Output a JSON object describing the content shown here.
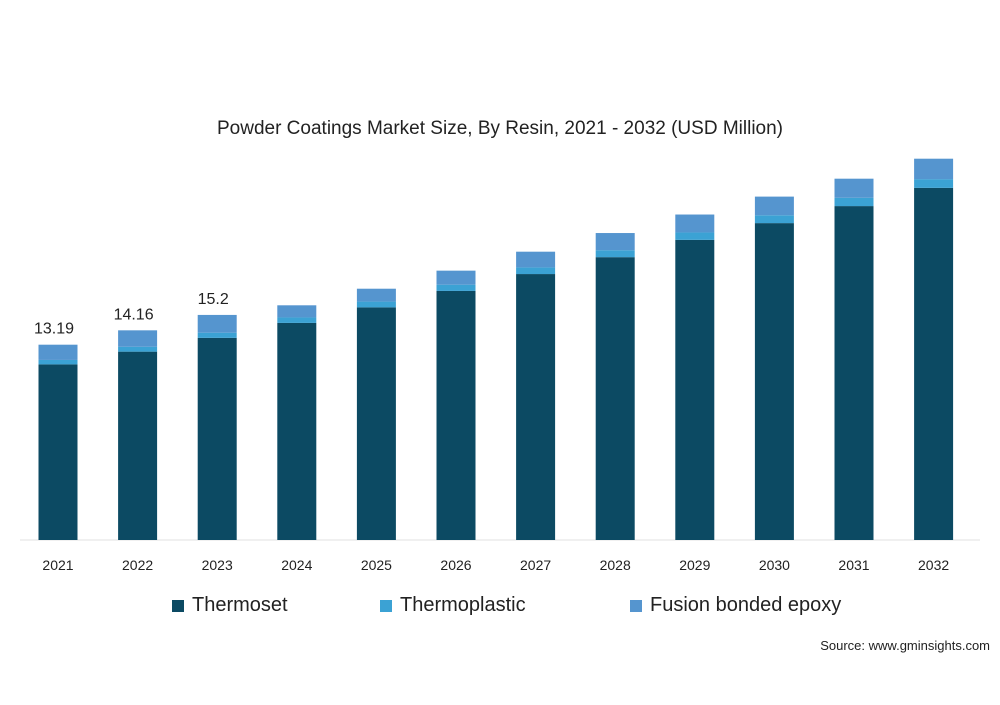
{
  "title": "Powder Coatings Market Size, By Resin, 2021 - 2032 (USD Million)",
  "source": "Source: www.gminsights.com",
  "colors": {
    "thermoset": "#0c4a63",
    "thermoplastic": "#3ba2d4",
    "fusion_bonded_epoxy": "#5595cf"
  },
  "chart_data": {
    "type": "bar",
    "stacked": true,
    "title": "Powder Coatings Market Size, By Resin, 2021 - 2032 (USD Million)",
    "categories": [
      "2021",
      "2022",
      "2023",
      "2024",
      "2025",
      "2026",
      "2027",
      "2028",
      "2029",
      "2030",
      "2031",
      "2032"
    ],
    "series": [
      {
        "name": "Thermoset",
        "values": [
          11.86,
          12.72,
          13.65,
          14.66,
          15.71,
          16.82,
          17.96,
          19.1,
          20.27,
          21.4,
          22.55,
          23.78
        ]
      },
      {
        "name": "Thermoplastic",
        "values": [
          0.3,
          0.33,
          0.35,
          0.37,
          0.39,
          0.42,
          0.45,
          0.47,
          0.5,
          0.53,
          0.56,
          0.59
        ]
      },
      {
        "name": "Fusion bonded epoxy",
        "values": [
          1.03,
          1.11,
          1.2,
          0.82,
          0.87,
          0.95,
          1.06,
          1.16,
          1.21,
          1.26,
          1.29,
          1.38
        ]
      }
    ],
    "data_labels": [
      {
        "category": "2021",
        "text": "13.19"
      },
      {
        "category": "2022",
        "text": "14.16"
      },
      {
        "category": "2023",
        "text": "15.2"
      }
    ],
    "ylim": [
      0,
      26
    ],
    "grid": false,
    "legend": "bottom"
  }
}
